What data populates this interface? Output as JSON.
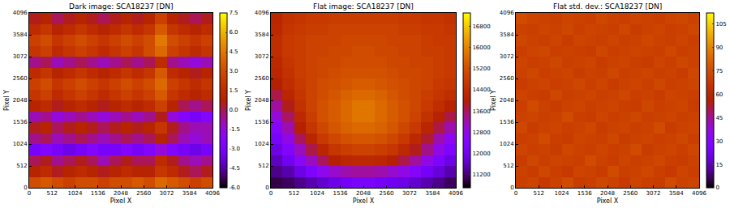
{
  "chart_data": [
    {
      "type": "heatmap",
      "title": "Dark image: SCA18237 [DN]",
      "xlabel": "Pixel X",
      "ylabel": "Pixel Y",
      "x": [
        128,
        384,
        640,
        896,
        1152,
        1408,
        1664,
        1920,
        2176,
        2432,
        2688,
        2944,
        3200,
        3456,
        3712,
        3968
      ],
      "y": [
        128,
        384,
        640,
        896,
        1152,
        1408,
        1664,
        1920,
        2176,
        2432,
        2688,
        2944,
        3200,
        3456,
        3712,
        3968
      ],
      "cells": [
        [
          3,
          3.5,
          3,
          2.5,
          3,
          3,
          2.5,
          3,
          3,
          3.5,
          3,
          4,
          3.5,
          3,
          2.5,
          3
        ],
        [
          1,
          1.5,
          0.5,
          1,
          1.5,
          1,
          0.5,
          1,
          1.5,
          1,
          1,
          2,
          1.5,
          0.5,
          0,
          0.5
        ],
        [
          0,
          0.5,
          -0.5,
          0,
          0.5,
          0,
          -1,
          0,
          0.5,
          0,
          0,
          1.5,
          0.5,
          -0.5,
          -1,
          -0.5
        ],
        [
          -3,
          -2.5,
          -3,
          -3.5,
          -3,
          -2.5,
          -3,
          -3,
          -2.5,
          -3,
          -2.5,
          -1.5,
          -2.5,
          -3,
          -3.5,
          -3
        ],
        [
          -0.5,
          0,
          -1,
          -0.5,
          0,
          -0.5,
          -1,
          -0.5,
          0,
          -0.5,
          0,
          1,
          0,
          -1,
          -1.5,
          -1
        ],
        [
          0.5,
          1,
          0,
          0.5,
          1,
          0.5,
          0,
          0.5,
          1,
          0.5,
          1,
          2,
          0.5,
          -0.5,
          -1,
          -1
        ],
        [
          -1,
          -0.5,
          -1.5,
          -1,
          -0.5,
          -1,
          -1.5,
          -1,
          -0.5,
          -1,
          -0.5,
          0.5,
          -1.5,
          -2.5,
          -3,
          -2.5
        ],
        [
          1,
          1.5,
          0.5,
          1,
          1.5,
          1,
          0.5,
          1,
          1.5,
          1,
          1.5,
          2.5,
          1,
          0,
          -0.5,
          0
        ],
        [
          2,
          2.5,
          1.5,
          2,
          2.5,
          2,
          1.5,
          2,
          2.5,
          2,
          2.5,
          3.5,
          2,
          1.5,
          1,
          1.5
        ],
        [
          2.5,
          3,
          2,
          2.5,
          3,
          2.5,
          2,
          2.5,
          3,
          2.5,
          3,
          4,
          2.5,
          2,
          1.5,
          2
        ],
        [
          1.5,
          2,
          1,
          1.5,
          2,
          1.5,
          1,
          1.5,
          2,
          1.5,
          2,
          3.5,
          1.5,
          1,
          0.5,
          1
        ],
        [
          -0.5,
          0,
          -1,
          -0.5,
          0,
          -0.5,
          -1,
          -0.5,
          0,
          -0.5,
          0,
          1.5,
          -0.5,
          -1,
          -1.5,
          -1
        ],
        [
          2,
          2.5,
          1.5,
          2,
          2.5,
          2,
          1.5,
          2,
          2.5,
          2,
          3,
          4,
          2.5,
          2,
          1.5,
          2
        ],
        [
          2.5,
          3,
          2,
          2.5,
          3,
          2.5,
          2,
          2.5,
          3,
          2.5,
          3,
          4.5,
          3,
          2.5,
          2,
          2.5
        ],
        [
          1.5,
          2,
          1,
          1.5,
          2,
          1.5,
          1,
          1.5,
          2,
          1.5,
          2,
          3.5,
          2,
          1.5,
          1,
          1.5
        ],
        [
          0.5,
          1,
          0,
          0.5,
          1,
          0.5,
          0,
          0.5,
          1,
          0.5,
          1,
          2.5,
          1,
          0.5,
          0,
          0.5
        ]
      ],
      "xlim": [
        0,
        4096
      ],
      "xticks": [
        0,
        512,
        1024,
        1536,
        2048,
        2560,
        3072,
        3584,
        4096
      ],
      "ylim": [
        0,
        4096
      ],
      "yticks": [
        0,
        512,
        1024,
        1536,
        2048,
        2560,
        3072,
        3584,
        4096
      ],
      "colorbar_range": [
        -6,
        7.5
      ],
      "colorbar_ticks": [
        {
          "value": -6,
          "label": "-6.0"
        },
        -4.5,
        {
          "value": -3,
          "label": "-3.0"
        },
        -1.5,
        {
          "value": 0,
          "label": "0.0"
        },
        1.5,
        {
          "value": 3,
          "label": "3.0"
        },
        4.5,
        {
          "value": 6,
          "label": "6.0"
        },
        7.5
      ]
    },
    {
      "type": "heatmap",
      "title": "Flat image: SCA18237 [DN]",
      "xlabel": "Pixel X",
      "ylabel": "Pixel Y",
      "x": [
        128,
        384,
        640,
        896,
        1152,
        1408,
        1664,
        1920,
        2176,
        2432,
        2688,
        2944,
        3200,
        3456,
        3712,
        3968
      ],
      "y": [
        128,
        384,
        640,
        896,
        1152,
        1408,
        1664,
        1920,
        2176,
        2432,
        2688,
        2944,
        3200,
        3456,
        3712,
        3968
      ],
      "cells": [
        [
          11000,
          11100,
          11300,
          11500,
          11700,
          11900,
          12100,
          12200,
          12200,
          12100,
          12000,
          11900,
          11700,
          11500,
          11300,
          11100
        ],
        [
          11300,
          11500,
          11900,
          12300,
          12700,
          13000,
          13200,
          13300,
          13300,
          13200,
          13000,
          12800,
          12500,
          12100,
          11800,
          11500
        ],
        [
          11600,
          12000,
          12600,
          13100,
          13600,
          14000,
          14200,
          14300,
          14300,
          14200,
          14000,
          13700,
          13300,
          12800,
          12300,
          11900
        ],
        [
          11900,
          12400,
          13100,
          13700,
          14200,
          14600,
          14800,
          14900,
          14900,
          14800,
          14600,
          14300,
          13900,
          13400,
          12800,
          12300
        ],
        [
          12200,
          12800,
          13600,
          14200,
          14700,
          15000,
          15200,
          15300,
          15300,
          15200,
          15000,
          14700,
          14300,
          13800,
          13200,
          12700
        ],
        [
          12500,
          13200,
          14000,
          14600,
          15000,
          15300,
          15500,
          15600,
          15600,
          15500,
          15300,
          15000,
          14700,
          14200,
          13700,
          13200
        ],
        [
          12900,
          13600,
          14300,
          14800,
          15200,
          15400,
          15600,
          15800,
          15800,
          15600,
          15400,
          15200,
          14900,
          14500,
          14100,
          13700
        ],
        [
          13300,
          13900,
          14500,
          14900,
          15200,
          15400,
          15600,
          15800,
          15800,
          15600,
          15400,
          15200,
          15000,
          14700,
          14400,
          14100
        ],
        [
          13700,
          14200,
          14600,
          14900,
          15100,
          15300,
          15500,
          15600,
          15600,
          15500,
          15300,
          15100,
          15000,
          14800,
          14600,
          14400
        ],
        [
          14000,
          14400,
          14700,
          14900,
          15100,
          15200,
          15300,
          15400,
          15400,
          15300,
          15200,
          15100,
          15000,
          14900,
          14700,
          14600
        ],
        [
          14200,
          14500,
          14800,
          14900,
          15000,
          15100,
          15200,
          15200,
          15200,
          15200,
          15100,
          15000,
          15000,
          14900,
          14800,
          14700
        ],
        [
          14300,
          14600,
          14800,
          14900,
          15000,
          15000,
          15100,
          15100,
          15100,
          15100,
          15000,
          15000,
          14900,
          14900,
          14800,
          14700
        ],
        [
          14400,
          14700,
          14800,
          14900,
          14900,
          15000,
          15000,
          15100,
          15100,
          15000,
          15000,
          14900,
          14900,
          14800,
          14800,
          14700
        ],
        [
          14400,
          14700,
          14800,
          14900,
          14900,
          14900,
          15000,
          15000,
          15000,
          15000,
          14900,
          14900,
          14900,
          14800,
          14700,
          14700
        ],
        [
          14300,
          14600,
          14700,
          14800,
          14800,
          14900,
          14900,
          14900,
          14900,
          14900,
          14900,
          14800,
          14800,
          14700,
          14700,
          14600
        ],
        [
          14200,
          14500,
          14600,
          14700,
          14700,
          14800,
          14800,
          14800,
          14800,
          14800,
          14800,
          14700,
          14700,
          14600,
          14600,
          14500
        ]
      ],
      "xlim": [
        0,
        4096
      ],
      "xticks": [
        0,
        512,
        1024,
        1536,
        2048,
        2560,
        3072,
        3584,
        4096
      ],
      "ylim": [
        0,
        4096
      ],
      "yticks": [
        0,
        512,
        1024,
        1536,
        2048,
        2560,
        3072,
        3584,
        4096
      ],
      "colorbar_range": [
        10700,
        17300
      ],
      "colorbar_ticks": [
        11200,
        12000,
        12800,
        13600,
        14400,
        15200,
        16000,
        16800
      ]
    },
    {
      "type": "heatmap",
      "title": "Flat std. dev.: SCA18237 [DN]",
      "xlabel": "Pixel X",
      "ylabel": "Pixel Y",
      "x": [
        128,
        384,
        640,
        896,
        1152,
        1408,
        1664,
        1920,
        2176,
        2432,
        2688,
        2944,
        3200,
        3456,
        3712,
        3968
      ],
      "y": [
        128,
        384,
        640,
        896,
        1152,
        1408,
        1664,
        1920,
        2176,
        2432,
        2688,
        2944,
        3200,
        3456,
        3712,
        3968
      ],
      "cells": [
        [
          70,
          72,
          68,
          71,
          74,
          69,
          70,
          73,
          71,
          68,
          72,
          70,
          69,
          74,
          71,
          72
        ],
        [
          71,
          69,
          73,
          70,
          68,
          72,
          71,
          69,
          74,
          70,
          71,
          73,
          70,
          68,
          72,
          70
        ],
        [
          69,
          73,
          70,
          72,
          71,
          70,
          74,
          71,
          69,
          72,
          70,
          71,
          73,
          70,
          69,
          71
        ],
        [
          72,
          70,
          71,
          69,
          73,
          71,
          70,
          72,
          70,
          71,
          74,
          69,
          71,
          72,
          70,
          73
        ],
        [
          70,
          71,
          74,
          70,
          69,
          72,
          71,
          70,
          73,
          69,
          71,
          72,
          70,
          71,
          73,
          70
        ],
        [
          73,
          69,
          71,
          72,
          70,
          71,
          73,
          69,
          71,
          72,
          70,
          71,
          74,
          69,
          71,
          72
        ],
        [
          71,
          72,
          70,
          71,
          74,
          70,
          69,
          72,
          70,
          71,
          73,
          70,
          71,
          72,
          70,
          71
        ],
        [
          70,
          74,
          71,
          69,
          71,
          72,
          70,
          71,
          72,
          70,
          69,
          73,
          70,
          71,
          72,
          69
        ],
        [
          72,
          70,
          69,
          73,
          70,
          71,
          72,
          70,
          71,
          73,
          70,
          71,
          69,
          72,
          71,
          70
        ],
        [
          69,
          71,
          72,
          70,
          71,
          73,
          70,
          72,
          69,
          71,
          72,
          70,
          73,
          70,
          71,
          72
        ],
        [
          71,
          73,
          70,
          71,
          72,
          69,
          71,
          70,
          73,
          70,
          71,
          72,
          70,
          71,
          69,
          73
        ],
        [
          72,
          70,
          71,
          73,
          70,
          71,
          72,
          69,
          71,
          72,
          70,
          69,
          72,
          70,
          73,
          71
        ],
        [
          70,
          72,
          73,
          70,
          71,
          70,
          69,
          73,
          70,
          71,
          72,
          71,
          70,
          73,
          70,
          71
        ],
        [
          73,
          71,
          70,
          72,
          69,
          72,
          71,
          70,
          72,
          70,
          71,
          73,
          71,
          70,
          72,
          70
        ],
        [
          71,
          70,
          72,
          71,
          73,
          70,
          72,
          71,
          70,
          73,
          69,
          71,
          72,
          70,
          71,
          73
        ],
        [
          74,
          72,
          71,
          70,
          72,
          71,
          70,
          73,
          71,
          70,
          72,
          71,
          70,
          72,
          73,
          71
        ]
      ],
      "xlim": [
        0,
        4096
      ],
      "xticks": [
        0,
        512,
        1024,
        1536,
        2048,
        2560,
        3072,
        3584,
        4096
      ],
      "ylim": [
        0,
        4096
      ],
      "yticks": [
        0,
        512,
        1024,
        1536,
        2048,
        2560,
        3072,
        3584,
        4096
      ],
      "colorbar_range": [
        0,
        112
      ],
      "colorbar_ticks": [
        0,
        15,
        30,
        45,
        60,
        75,
        90,
        105
      ]
    }
  ]
}
